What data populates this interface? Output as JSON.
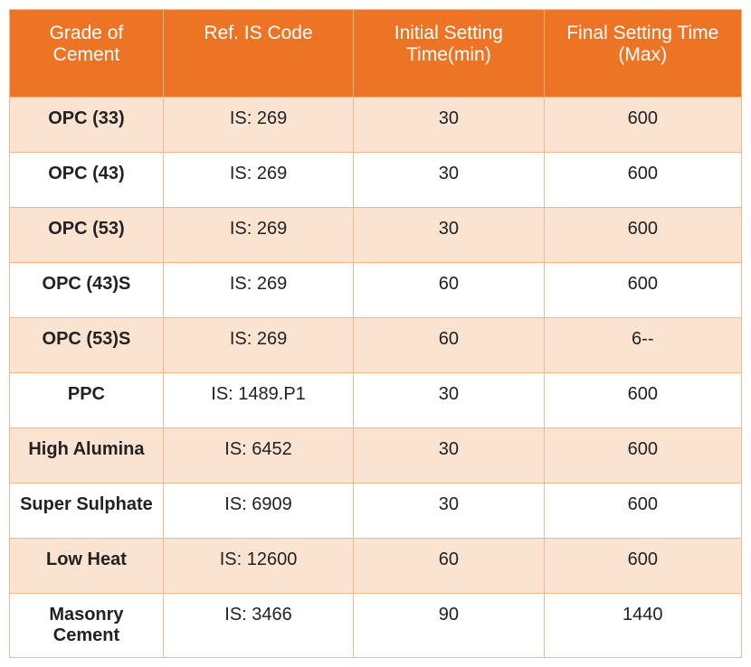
{
  "table": {
    "header_bg": "#ec7424",
    "header_fg": "#ffffff",
    "row_odd_bg": "#fbe3d1",
    "row_even_bg": "#ffffff",
    "border_color": "#f3b78a",
    "header_fontsize": 21,
    "cell_fontsize": 20,
    "columns": [
      "Grade of Cement",
      "Ref. IS Code",
      "Initial Setting Time(min)",
      "Final Setting Time (Max)"
    ],
    "rows": [
      {
        "grade": "OPC (33)",
        "ref": "IS: 269",
        "initial": "30",
        "final": "600"
      },
      {
        "grade": "OPC (43)",
        "ref": "IS: 269",
        "initial": "30",
        "final": "600"
      },
      {
        "grade": "OPC (53)",
        "ref": "IS: 269",
        "initial": "30",
        "final": "600"
      },
      {
        "grade": "OPC (43)S",
        "ref": "IS: 269",
        "initial": "60",
        "final": "600"
      },
      {
        "grade": "OPC (53)S",
        "ref": "IS: 269",
        "initial": "60",
        "final": "6--"
      },
      {
        "grade": "PPC",
        "ref": "IS: 1489.P1",
        "initial": "30",
        "final": "600"
      },
      {
        "grade": "High Alumina",
        "ref": "IS: 6452",
        "initial": "30",
        "final": "600"
      },
      {
        "grade": "Super Sulphate",
        "ref": "IS: 6909",
        "initial": "30",
        "final": "600"
      },
      {
        "grade": "Low Heat",
        "ref": "IS: 12600",
        "initial": "60",
        "final": "600"
      },
      {
        "grade": "Masonry Cement",
        "ref": "IS: 3466",
        "initial": "90",
        "final": "1440"
      }
    ]
  }
}
